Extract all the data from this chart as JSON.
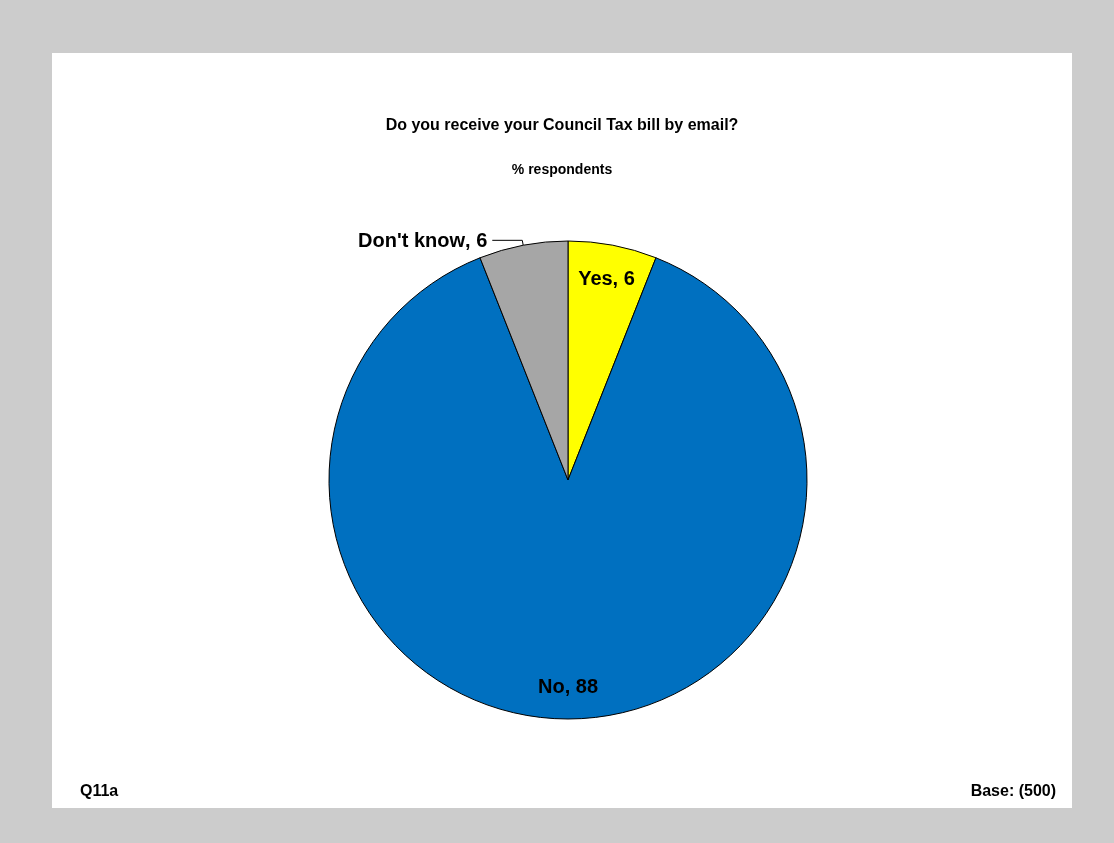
{
  "chart_data": {
    "type": "pie",
    "title": "Do you receive your Council Tax bill by email?",
    "subtitle": "% respondents",
    "categories": [
      "Yes",
      "No",
      "Don't know"
    ],
    "values": [
      6,
      88,
      6
    ],
    "colors": [
      "#ffff00",
      "#0070c0",
      "#a6a6a6"
    ],
    "value_labels": [
      ", 6",
      ", 88",
      ", 6"
    ],
    "legend": false,
    "annotations": [
      "Q11a",
      "Base: (500)"
    ]
  }
}
